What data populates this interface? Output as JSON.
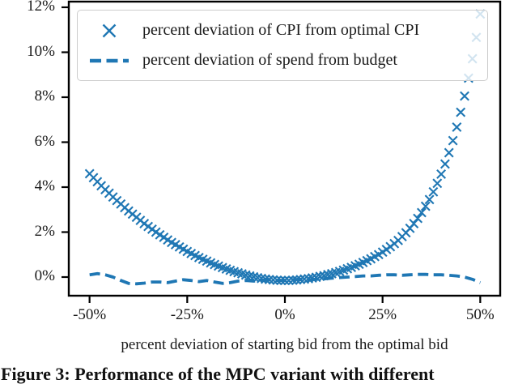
{
  "figure": {
    "caption": "Figure 3: Performance of the MPC variant with different"
  },
  "chart_data": {
    "type": "line",
    "title": "",
    "xlabel": "percent deviation of starting bid from the optimal bid",
    "ylabel": "",
    "xlim": [
      -55.3,
      55.1
    ],
    "ylim": [
      -0.83,
      12.25
    ],
    "grid": false,
    "legend_position": "upper left",
    "x_ticks": {
      "values": [
        -50,
        -25,
        0,
        25,
        50
      ],
      "labels": [
        "-50%",
        "-25%",
        "0%",
        "25%",
        "50%"
      ]
    },
    "y_ticks": {
      "values": [
        0,
        2,
        4,
        6,
        8,
        10,
        12
      ],
      "labels": [
        "0%",
        "2%",
        "4%",
        "6%",
        "8%",
        "10%",
        "12%"
      ]
    },
    "colors": {
      "series_blue": "#1f77b4",
      "spine": "#000000",
      "legend_border": "#cccccc",
      "text": "#1a1a1a"
    },
    "series": [
      {
        "name": "percent deviation of CPI from optimal CPI",
        "style": "scatter",
        "marker": "x",
        "x_start": -50,
        "x_step": 1,
        "values": [
          4.6,
          4.42,
          4.24,
          4.06,
          3.89,
          3.73,
          3.56,
          3.4,
          3.25,
          3.09,
          2.94,
          2.8,
          2.66,
          2.52,
          2.38,
          2.25,
          2.13,
          2.0,
          1.88,
          1.77,
          1.65,
          1.54,
          1.44,
          1.34,
          1.24,
          1.14,
          1.05,
          0.96,
          0.87,
          0.79,
          0.71,
          0.63,
          0.56,
          0.49,
          0.42,
          0.36,
          0.3,
          0.24,
          0.19,
          0.14,
          0.09,
          0.05,
          0.01,
          -0.03,
          -0.06,
          -0.09,
          -0.11,
          -0.13,
          -0.14,
          -0.15,
          -0.15,
          -0.15,
          -0.14,
          -0.13,
          -0.11,
          -0.09,
          -0.07,
          -0.04,
          -0.01,
          0.03,
          0.06,
          0.11,
          0.15,
          0.2,
          0.25,
          0.31,
          0.37,
          0.43,
          0.5,
          0.57,
          0.65,
          0.73,
          0.81,
          0.91,
          1.0,
          1.11,
          1.23,
          1.35,
          1.49,
          1.63,
          1.8,
          1.97,
          2.17,
          2.38,
          2.61,
          2.87,
          3.15,
          3.45,
          3.79,
          4.17,
          4.58,
          5.03,
          5.53,
          6.07,
          6.67,
          7.33,
          8.05,
          8.85,
          9.71,
          10.66,
          11.7
        ]
      },
      {
        "name": "percent deviation of spend from budget",
        "style": "dashed-line",
        "x_start": -50,
        "x_step": 2,
        "values": [
          0.1,
          0.15,
          0.1,
          0.0,
          -0.15,
          -0.28,
          -0.3,
          -0.27,
          -0.22,
          -0.22,
          -0.25,
          -0.18,
          -0.12,
          -0.15,
          -0.2,
          -0.15,
          -0.22,
          -0.28,
          -0.25,
          -0.18,
          -0.15,
          -0.18,
          -0.15,
          -0.12,
          -0.15,
          -0.15,
          -0.12,
          -0.1,
          -0.12,
          -0.1,
          -0.08,
          -0.05,
          -0.02,
          0.0,
          0.02,
          0.05,
          0.05,
          0.08,
          0.1,
          0.1,
          0.08,
          0.1,
          0.12,
          0.12,
          0.1,
          0.1,
          0.08,
          0.05,
          0.0,
          -0.1,
          -0.25
        ]
      }
    ]
  }
}
